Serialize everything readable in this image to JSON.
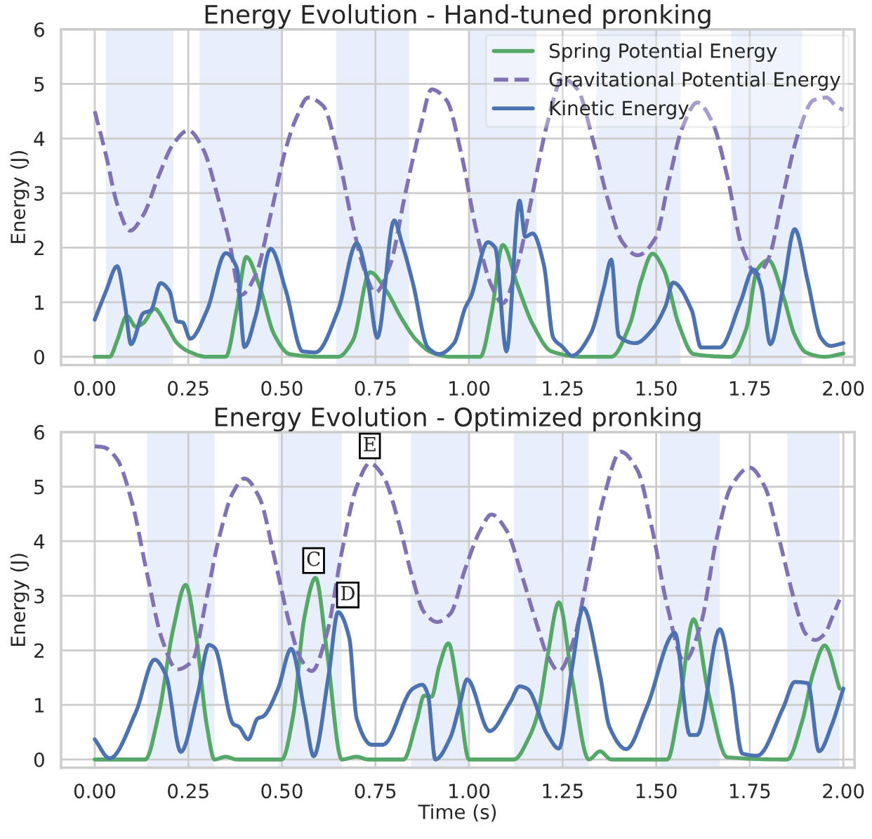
{
  "chart_data": [
    {
      "type": "line",
      "title": "Energy Evolution - Hand-tuned pronking",
      "ylabel": "Energy (J)",
      "xlim": [
        -0.09,
        2.03
      ],
      "ylim": [
        -0.15,
        6
      ],
      "xticks": [
        {
          "value": 0,
          "label": "0.00"
        },
        {
          "value": 0.25,
          "label": "0.25"
        },
        {
          "value": 0.5,
          "label": "0.50"
        },
        {
          "value": 0.75,
          "label": "0.75"
        },
        {
          "value": 1,
          "label": "1.00"
        },
        {
          "value": 1.25,
          "label": "1.25"
        },
        {
          "value": 1.5,
          "label": "1.50"
        },
        {
          "value": 1.75,
          "label": "1.75"
        },
        {
          "value": 2,
          "label": "2.00"
        }
      ],
      "yticks": [
        0,
        1,
        2,
        3,
        4,
        5,
        6
      ],
      "grid": true,
      "legend": "top right",
      "bands": [
        {
          "axis": "x",
          "from": 0.03,
          "to": 0.21,
          "color": "#e8effa"
        },
        {
          "axis": "x",
          "from": 0.28,
          "to": 0.5,
          "color": "#e8effa"
        },
        {
          "axis": "x",
          "from": 0.645,
          "to": 0.84,
          "color": "#e8effa"
        },
        {
          "axis": "x",
          "from": 1.0,
          "to": 1.18,
          "color": "#e8effa"
        },
        {
          "axis": "x",
          "from": 1.34,
          "to": 1.565,
          "color": "#e8effa"
        },
        {
          "axis": "x",
          "from": 1.7,
          "to": 1.89,
          "color": "#e8effa"
        }
      ],
      "series": [
        {
          "name": "Spring Potential Energy",
          "color": "#55a868",
          "line_style": "solid",
          "x": [
            0,
            0.04,
            0.06,
            0.086,
            0.11,
            0.13,
            0.16,
            0.19,
            0.22,
            0.25,
            0.3,
            0.35,
            0.38,
            0.405,
            0.44,
            0.48,
            0.52,
            0.6,
            0.65,
            0.69,
            0.735,
            0.78,
            0.82,
            0.86,
            0.9,
            0.95,
            1.03,
            1.06,
            1.09,
            1.13,
            1.17,
            1.22,
            1.3,
            1.38,
            1.43,
            1.46,
            1.49,
            1.52,
            1.56,
            1.6,
            1.7,
            1.74,
            1.77,
            1.8,
            1.84,
            1.87,
            1.9,
            1.95,
            2.0
          ],
          "values": [
            0,
            0,
            0.3,
            0.75,
            0.55,
            0.62,
            0.88,
            0.6,
            0.25,
            0.1,
            0,
            0,
            0.9,
            1.83,
            1.3,
            0.4,
            0.05,
            0,
            0,
            0.3,
            1.55,
            1.2,
            0.7,
            0.3,
            0.08,
            0,
            0,
            0.8,
            2.05,
            1.3,
            0.6,
            0.1,
            0,
            0,
            0.6,
            1.4,
            1.89,
            1.6,
            0.6,
            0.05,
            0,
            0.5,
            1.6,
            1.77,
            1.1,
            0.4,
            0.08,
            0,
            0.06
          ]
        },
        {
          "name": "Gravitational Potential Energy",
          "color": "#8172b3",
          "line_style": "dashed",
          "x": [
            0,
            0.03,
            0.06,
            0.094,
            0.13,
            0.17,
            0.21,
            0.25,
            0.29,
            0.33,
            0.36,
            0.39,
            0.43,
            0.47,
            0.51,
            0.54,
            0.57,
            0.61,
            0.65,
            0.69,
            0.72,
            0.75,
            0.79,
            0.83,
            0.87,
            0.9,
            0.94,
            0.98,
            1.02,
            1.06,
            1.09,
            1.13,
            1.17,
            1.21,
            1.25,
            1.29,
            1.33,
            1.37,
            1.41,
            1.45,
            1.5,
            1.53,
            1.57,
            1.61,
            1.65,
            1.69,
            1.73,
            1.77,
            1.8,
            1.84,
            1.88,
            1.92,
            1.955,
            1.98,
            2.0
          ],
          "values": [
            4.5,
            3.7,
            2.8,
            2.31,
            2.6,
            3.3,
            3.9,
            4.15,
            3.8,
            2.9,
            2.1,
            1.13,
            1.5,
            2.6,
            3.8,
            4.4,
            4.75,
            4.6,
            3.7,
            2.4,
            1.6,
            1.18,
            1.7,
            3.0,
            4.2,
            4.9,
            4.7,
            3.7,
            2.3,
            1.3,
            0.98,
            1.7,
            3.0,
            4.3,
            5.1,
            4.9,
            4.0,
            2.9,
            2.1,
            1.86,
            2.2,
            3.1,
            4.2,
            4.66,
            4.3,
            3.3,
            2.0,
            1.51,
            1.8,
            3.0,
            4.1,
            4.7,
            4.75,
            4.6,
            4.52
          ]
        },
        {
          "name": "Kinetic Energy",
          "color": "#4c72b0",
          "line_style": "solid",
          "x": [
            0,
            0.03,
            0.06,
            0.08,
            0.097,
            0.13,
            0.15,
            0.176,
            0.2,
            0.22,
            0.235,
            0.255,
            0.3,
            0.35,
            0.38,
            0.4,
            0.43,
            0.47,
            0.51,
            0.555,
            0.59,
            0.65,
            0.7,
            0.73,
            0.755,
            0.8,
            0.82,
            0.85,
            0.89,
            0.92,
            0.96,
            0.99,
            1.005,
            1.05,
            1.07,
            1.1,
            1.135,
            1.15,
            1.17,
            1.2,
            1.225,
            1.25,
            1.275,
            1.325,
            1.36,
            1.38,
            1.4,
            1.445,
            1.49,
            1.525,
            1.545,
            1.595,
            1.62,
            1.67,
            1.725,
            1.76,
            1.78,
            1.805,
            1.84,
            1.87,
            1.905,
            1.94,
            1.965,
            2.0
          ],
          "values": [
            0.68,
            1.2,
            1.66,
            1.0,
            0.23,
            0.8,
            0.85,
            1.35,
            1.2,
            0.65,
            0.63,
            0.33,
            0.85,
            1.9,
            1.62,
            0.18,
            0.75,
            1.98,
            1.23,
            0.1,
            0.08,
            0.85,
            2.08,
            1.35,
            0.35,
            2.5,
            2.1,
            1.35,
            0.17,
            0.05,
            0.25,
            0.9,
            1.1,
            2.1,
            2.0,
            0.1,
            2.86,
            2.2,
            2.26,
            1.68,
            0.35,
            0.18,
            0.02,
            0.42,
            1.26,
            1.78,
            0.38,
            0.25,
            0.5,
            0.93,
            1.36,
            0.85,
            0.17,
            0.17,
            1.0,
            1.6,
            1.3,
            0.23,
            1.3,
            2.34,
            1.38,
            0.35,
            0.2,
            0.25
          ]
        }
      ]
    },
    {
      "type": "line",
      "title": "Energy Evolution - Optimized pronking",
      "xlabel": "Time (s)",
      "ylabel": "Energy (J)",
      "xlim": [
        -0.09,
        2.03
      ],
      "ylim": [
        -0.15,
        6
      ],
      "xticks": [
        {
          "value": 0,
          "label": "0.00"
        },
        {
          "value": 0.25,
          "label": "0.25"
        },
        {
          "value": 0.5,
          "label": "0.50"
        },
        {
          "value": 0.75,
          "label": "0.75"
        },
        {
          "value": 1,
          "label": "1.00"
        },
        {
          "value": 1.25,
          "label": "1.25"
        },
        {
          "value": 1.5,
          "label": "1.50"
        },
        {
          "value": 1.75,
          "label": "1.75"
        },
        {
          "value": 2,
          "label": "2.00"
        }
      ],
      "yticks": [
        0,
        1,
        2,
        3,
        4,
        5,
        6
      ],
      "grid": true,
      "annotations": [
        {
          "text": "C",
          "x": 0.59,
          "y": 3.33
        },
        {
          "text": "D",
          "x": 0.65,
          "y": 2.7
        },
        {
          "text": "E",
          "x": 0.735,
          "y": 5.43
        }
      ],
      "bands": [
        {
          "axis": "x",
          "from": 0.14,
          "to": 0.32,
          "color": "#e8effa"
        },
        {
          "axis": "x",
          "from": 0.49,
          "to": 0.66,
          "color": "#e8effa"
        },
        {
          "axis": "x",
          "from": 0.845,
          "to": 1.0,
          "color": "#e8effa"
        },
        {
          "axis": "x",
          "from": 1.12,
          "to": 1.32,
          "color": "#e8effa"
        },
        {
          "axis": "x",
          "from": 1.51,
          "to": 1.67,
          "color": "#e8effa"
        },
        {
          "axis": "x",
          "from": 1.85,
          "to": 1.99,
          "color": "#e8effa"
        }
      ],
      "series": [
        {
          "color": "#55a868",
          "line_style": "solid",
          "x": [
            0,
            0.135,
            0.17,
            0.21,
            0.243,
            0.27,
            0.3,
            0.32,
            0.35,
            0.38,
            0.5,
            0.53,
            0.56,
            0.59,
            0.62,
            0.66,
            0.7,
            0.73,
            0.825,
            0.86,
            0.88,
            0.9,
            0.92,
            0.945,
            0.97,
            1.0,
            1.12,
            1.16,
            1.185,
            1.21,
            1.24,
            1.275,
            1.32,
            1.35,
            1.38,
            1.53,
            1.56,
            1.6,
            1.64,
            1.69,
            1.85,
            1.89,
            1.92,
            1.95,
            1.99
          ],
          "values": [
            0,
            0,
            0.8,
            2.4,
            3.2,
            2.3,
            0.6,
            0,
            0.05,
            0,
            0,
            0.8,
            2.6,
            3.33,
            2.0,
            0,
            0.05,
            0,
            0,
            0.7,
            1.17,
            1.15,
            1.7,
            2.13,
            1.3,
            0,
            0,
            0.4,
            0.88,
            1.9,
            2.88,
            1.5,
            0,
            0.15,
            0,
            0,
            0.9,
            2.57,
            1.2,
            0.04,
            0,
            0.7,
            1.6,
            2.09,
            1.3
          ]
        },
        {
          "color": "#8172b3",
          "line_style": "dashed",
          "x": [
            0,
            0.025,
            0.06,
            0.1,
            0.14,
            0.18,
            0.22,
            0.26,
            0.3,
            0.33,
            0.37,
            0.4,
            0.44,
            0.48,
            0.52,
            0.55,
            0.58,
            0.62,
            0.66,
            0.7,
            0.735,
            0.77,
            0.81,
            0.85,
            0.88,
            0.915,
            0.95,
            0.99,
            1.03,
            1.06,
            1.1,
            1.14,
            1.18,
            1.21,
            1.24,
            1.28,
            1.32,
            1.36,
            1.405,
            1.45,
            1.49,
            1.53,
            1.575,
            1.62,
            1.66,
            1.7,
            1.75,
            1.79,
            1.83,
            1.87,
            1.9,
            1.925,
            1.95,
            1.97,
            1.99
          ],
          "values": [
            5.74,
            5.72,
            5.5,
            4.7,
            3.4,
            2.2,
            1.65,
            1.8,
            3.0,
            4.0,
            4.9,
            5.15,
            4.8,
            3.7,
            2.5,
            1.85,
            1.62,
            2.3,
            3.8,
            5.0,
            5.43,
            5.2,
            4.4,
            3.3,
            2.7,
            2.52,
            2.67,
            3.5,
            4.2,
            4.49,
            4.2,
            3.4,
            2.5,
            1.9,
            1.62,
            2.2,
            3.5,
            4.8,
            5.64,
            5.3,
            4.2,
            2.8,
            1.8,
            2.5,
            4.0,
            5.0,
            5.35,
            5.0,
            4.0,
            2.9,
            2.3,
            2.19,
            2.3,
            2.6,
            2.93
          ]
        },
        {
          "color": "#4c72b0",
          "line_style": "solid",
          "x": [
            0,
            0.04,
            0.11,
            0.16,
            0.19,
            0.23,
            0.275,
            0.305,
            0.32,
            0.37,
            0.385,
            0.41,
            0.435,
            0.45,
            0.49,
            0.525,
            0.56,
            0.585,
            0.625,
            0.65,
            0.68,
            0.7,
            0.74,
            0.77,
            0.85,
            0.875,
            0.89,
            0.91,
            0.95,
            0.975,
            0.995,
            1.055,
            1.11,
            1.135,
            1.155,
            1.21,
            1.24,
            1.275,
            1.305,
            1.35,
            1.375,
            1.42,
            1.475,
            1.55,
            1.59,
            1.61,
            1.67,
            1.7,
            1.73,
            1.77,
            1.84,
            1.87,
            1.905,
            1.935,
            1.97,
            2.0
          ],
          "values": [
            0.37,
            0.02,
            0.87,
            1.83,
            1.55,
            0.14,
            1.2,
            2.1,
            2.05,
            0.65,
            0.6,
            0.37,
            0.75,
            0.79,
            1.3,
            2.03,
            0.9,
            0.06,
            1.55,
            2.7,
            2.23,
            0.75,
            0.27,
            0.27,
            1.3,
            1.37,
            1.2,
            0.0,
            0.4,
            1.0,
            1.47,
            0.52,
            1.05,
            1.34,
            1.3,
            0.45,
            0.2,
            1.67,
            2.78,
            1.55,
            0.6,
            0.19,
            0.96,
            2.32,
            0.45,
            0.45,
            2.39,
            1.45,
            0.11,
            0.07,
            0.96,
            1.42,
            1.4,
            0.15,
            0.65,
            1.3
          ]
        }
      ]
    }
  ]
}
